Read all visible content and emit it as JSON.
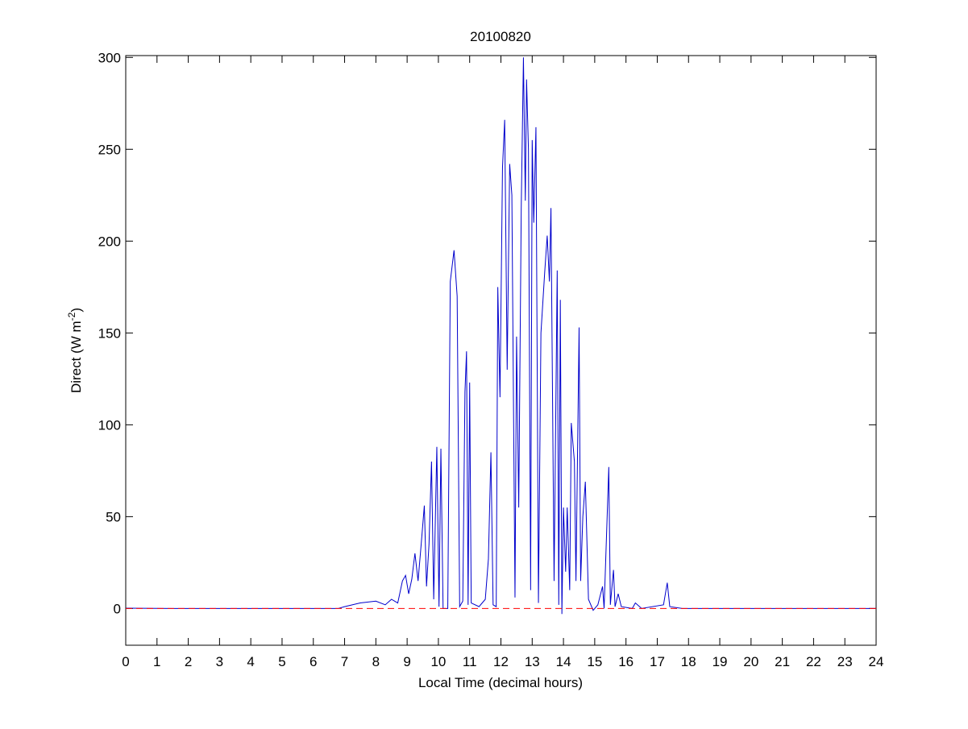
{
  "chart_data": {
    "type": "line",
    "title": "20100820",
    "xlabel": "Local Time (decimal hours)",
    "ylabel": [
      "Direct (W m",
      "-2",
      ")"
    ],
    "x": [
      0,
      1.5,
      6.8,
      7,
      7.5,
      8,
      8.3,
      8.5,
      8.7,
      8.85,
      8.95,
      9.05,
      9.15,
      9.25,
      9.35,
      9.45,
      9.55,
      9.62,
      9.7,
      9.78,
      9.85,
      9.95,
      10.02,
      10.08,
      10.15,
      10.3,
      10.38,
      10.5,
      10.6,
      10.68,
      10.78,
      10.85,
      10.9,
      10.95,
      11.0,
      11.05,
      11.3,
      11.5,
      11.6,
      11.68,
      11.75,
      11.85,
      11.9,
      11.97,
      12.05,
      12.12,
      12.2,
      12.28,
      12.35,
      12.45,
      12.5,
      12.57,
      12.65,
      12.72,
      12.78,
      12.82,
      12.88,
      12.95,
      13.0,
      13.05,
      13.12,
      13.2,
      13.28,
      13.4,
      13.48,
      13.55,
      13.6,
      13.7,
      13.8,
      13.85,
      13.9,
      13.95,
      14.0,
      14.07,
      14.12,
      14.2,
      14.25,
      14.35,
      14.4,
      14.5,
      14.55,
      14.62,
      14.7,
      14.8,
      14.95,
      15.1,
      15.25,
      15.3,
      15.45,
      15.5,
      15.6,
      15.65,
      15.75,
      15.85,
      16.2,
      16.3,
      16.5,
      17.2,
      17.32,
      17.4,
      17.8,
      24
    ],
    "series": [
      {
        "color": "#0000cc",
        "values": [
          0.2,
          0,
          0,
          1,
          3,
          4,
          2,
          5,
          3,
          15,
          18,
          8,
          16,
          30,
          15,
          35,
          56,
          12,
          35,
          80,
          5,
          88,
          1,
          87,
          0,
          0,
          178,
          195,
          170,
          1,
          4,
          118,
          140,
          2,
          123,
          3,
          1,
          5,
          27,
          85,
          2,
          1,
          175,
          115,
          240,
          266,
          130,
          242,
          225,
          6,
          148,
          55,
          218,
          300,
          222,
          288,
          250,
          10,
          255,
          210,
          262,
          3,
          150,
          183,
          203,
          178,
          218,
          15,
          184,
          2,
          168,
          -3,
          55,
          20,
          55,
          10,
          101,
          80,
          15,
          153,
          15,
          50,
          69,
          5,
          -1,
          2,
          12,
          0,
          77,
          2,
          21,
          1,
          8,
          1,
          0,
          3,
          0,
          2,
          14,
          1,
          0,
          0
        ]
      }
    ],
    "hline": 0,
    "hline_color": "#ff0000",
    "xlim": [
      0,
      24
    ],
    "xticks": [
      0,
      1,
      2,
      3,
      4,
      5,
      6,
      7,
      8,
      9,
      10,
      11,
      12,
      13,
      14,
      15,
      16,
      17,
      18,
      19,
      20,
      21,
      22,
      23,
      24
    ],
    "ylim": [
      -20,
      301
    ],
    "yticks": [
      0,
      50,
      100,
      150,
      200,
      250,
      300
    ]
  }
}
